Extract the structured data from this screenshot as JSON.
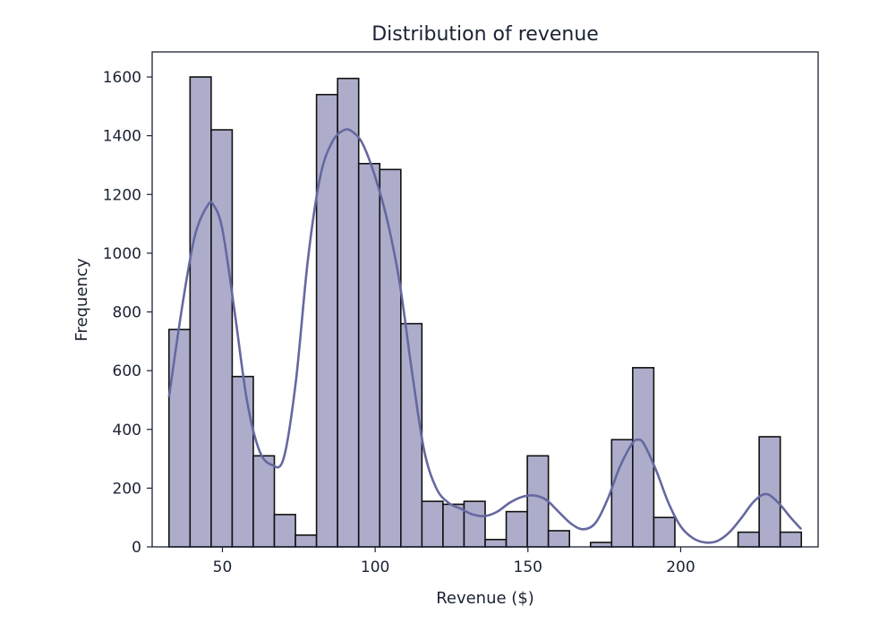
{
  "chart_data": {
    "type": "bar",
    "title": "Distribution of revenue",
    "xlabel": "Revenue ($)",
    "ylabel": "Frequency",
    "xlim": [
      27,
      245
    ],
    "ylim": [
      0,
      1600
    ],
    "xticks": [
      50,
      100,
      150,
      200
    ],
    "yticks": [
      0,
      200,
      400,
      600,
      800,
      1000,
      1200,
      1400,
      1600
    ],
    "bin_edges": [
      32.5,
      39.4,
      46.3,
      53.2,
      60.1,
      67.0,
      73.9,
      80.8,
      87.7,
      94.6,
      101.5,
      108.4,
      115.3,
      122.2,
      129.1,
      136.0,
      142.9,
      149.8,
      156.7,
      163.6,
      170.5,
      177.4,
      184.3,
      191.2,
      198.1,
      205.0,
      211.9,
      218.8,
      225.7,
      232.6,
      239.5
    ],
    "values": [
      740,
      1600,
      1420,
      580,
      310,
      110,
      40,
      1540,
      1595,
      1305,
      1285,
      760,
      155,
      145,
      155,
      25,
      120,
      310,
      55,
      0,
      15,
      365,
      610,
      100,
      0,
      0,
      0,
      50,
      375,
      50
    ],
    "kde": {
      "x": [
        32.5,
        37,
        41,
        45,
        47,
        50,
        54,
        58,
        62,
        66,
        70,
        74,
        78,
        82,
        86,
        90,
        93,
        96,
        100,
        104,
        108,
        112,
        116,
        120,
        124,
        128,
        132,
        136,
        140,
        144,
        148,
        152,
        156,
        160,
        164,
        168,
        172,
        176,
        180,
        184,
        186,
        188,
        192,
        196,
        200,
        204,
        208,
        212,
        216,
        220,
        224,
        228,
        232,
        236,
        239.5
      ],
      "y": [
        510,
        830,
        1060,
        1160,
        1165,
        1080,
        800,
        500,
        330,
        280,
        300,
        560,
        980,
        1260,
        1380,
        1420,
        1410,
        1370,
        1260,
        1110,
        900,
        600,
        330,
        200,
        150,
        130,
        110,
        105,
        120,
        150,
        170,
        175,
        160,
        120,
        80,
        60,
        80,
        160,
        270,
        350,
        365,
        350,
        260,
        150,
        70,
        30,
        15,
        20,
        50,
        100,
        155,
        180,
        150,
        100,
        60
      ]
    },
    "bar_color": "#adadcb",
    "line_color": "#6568a0",
    "grid": false,
    "legend": false
  }
}
